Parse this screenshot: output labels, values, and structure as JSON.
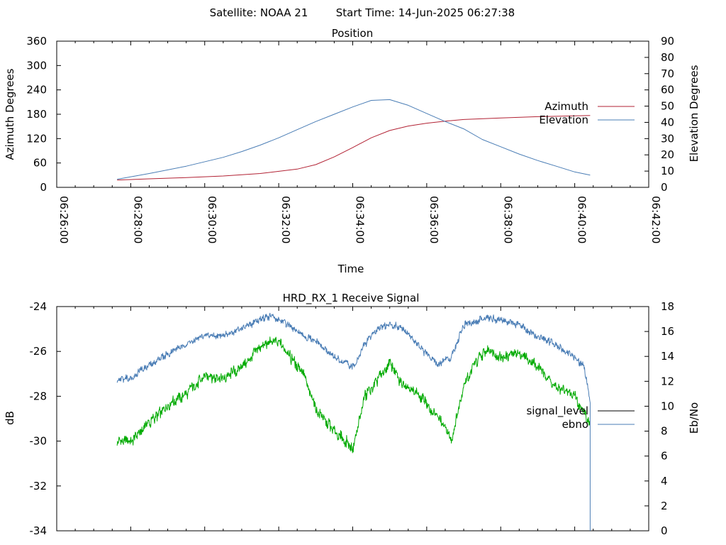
{
  "header": {
    "satellite_label": "Satellite: NOAA 21",
    "start_time_label": "Start Time: 14-Jun-2025 06:27:38"
  },
  "chart_data": [
    {
      "type": "line",
      "title": "Position",
      "xlabel": "Time",
      "ylabel": "Azimuth Degrees",
      "y2label": "Elevation Degrees",
      "x_ticks": [
        "06:26:00",
        "06:28:00",
        "06:30:00",
        "06:32:00",
        "06:34:00",
        "06:36:00",
        "06:38:00",
        "06:40:00",
        "06:42:00"
      ],
      "xlim": [
        "06:26:00",
        "06:42:00"
      ],
      "ylim": [
        0,
        360
      ],
      "y_ticks": [
        0,
        60,
        120,
        180,
        240,
        300,
        360
      ],
      "y2lim": [
        0,
        90
      ],
      "y2_ticks": [
        0,
        10,
        20,
        30,
        40,
        50,
        60,
        70,
        80,
        90
      ],
      "grid": false,
      "legend": "right",
      "series": [
        {
          "name": "Azimuth",
          "axis": "y",
          "color": "#b22234",
          "x": [
            "06:27:38",
            "06:28:30",
            "06:29:30",
            "06:30:30",
            "06:31:30",
            "06:32:30",
            "06:33:00",
            "06:33:30",
            "06:34:00",
            "06:34:30",
            "06:35:00",
            "06:35:30",
            "06:36:00",
            "06:36:30",
            "06:37:00",
            "06:38:00",
            "06:39:00",
            "06:40:00",
            "06:40:25"
          ],
          "values": [
            18,
            21,
            24,
            28,
            34,
            45,
            56,
            75,
            98,
            122,
            140,
            151,
            158,
            163,
            167,
            171,
            174,
            176,
            177
          ]
        },
        {
          "name": "Elevation",
          "axis": "y2",
          "color": "#4a7db5",
          "x": [
            "06:27:38",
            "06:28:30",
            "06:29:30",
            "06:30:30",
            "06:31:00",
            "06:31:30",
            "06:32:00",
            "06:32:30",
            "06:33:00",
            "06:33:30",
            "06:34:00",
            "06:34:30",
            "06:35:00",
            "06:35:30",
            "06:36:00",
            "06:36:30",
            "06:37:00",
            "06:37:30",
            "06:38:00",
            "06:38:30",
            "06:39:00",
            "06:39:30",
            "06:40:00",
            "06:40:25"
          ],
          "values": [
            5,
            8.5,
            13,
            18.5,
            22,
            26,
            30.5,
            35.5,
            40.5,
            45,
            49.5,
            53.5,
            54,
            50.5,
            45.5,
            40.5,
            36,
            29.5,
            25,
            20.5,
            16.5,
            13,
            9.5,
            7.5
          ]
        }
      ]
    },
    {
      "type": "line",
      "title": "HRD_RX_1 Receive Signal",
      "ylabel": "dB",
      "y2label": "Eb/No",
      "xlim": [
        "06:26:00",
        "06:42:00"
      ],
      "ylim": [
        -34,
        -24
      ],
      "y_ticks": [
        -34,
        -32,
        -30,
        -28,
        -26,
        -24
      ],
      "y2lim": [
        0,
        18
      ],
      "y2_ticks": [
        0,
        2,
        4,
        6,
        8,
        10,
        12,
        14,
        16,
        18
      ],
      "grid": false,
      "legend": "right",
      "series": [
        {
          "name": "signal_level",
          "axis": "y",
          "color": "#00aa00",
          "x": [
            "06:27:38",
            "06:28:00",
            "06:28:30",
            "06:29:00",
            "06:29:30",
            "06:30:00",
            "06:30:30",
            "06:31:00",
            "06:31:20",
            "06:31:40",
            "06:32:00",
            "06:32:20",
            "06:32:40",
            "06:33:00",
            "06:33:20",
            "06:33:40",
            "06:34:00",
            "06:34:20",
            "06:34:40",
            "06:35:00",
            "06:35:20",
            "06:35:40",
            "06:36:00",
            "06:36:20",
            "06:36:40",
            "06:37:00",
            "06:37:20",
            "06:37:40",
            "06:38:00",
            "06:38:30",
            "06:39:00",
            "06:39:30",
            "06:40:00",
            "06:40:15",
            "06:40:25"
          ],
          "values": [
            -30,
            -30,
            -29.2,
            -28.4,
            -27.9,
            -27.1,
            -27.2,
            -26.7,
            -26.1,
            -25.6,
            -25.6,
            -26.3,
            -27,
            -28.5,
            -29.2,
            -29.8,
            -30.3,
            -28,
            -27.3,
            -26.5,
            -27.5,
            -27.8,
            -28.3,
            -29,
            -30,
            -27.5,
            -26.5,
            -25.8,
            -26.3,
            -26,
            -26.7,
            -27.6,
            -28,
            -28.7,
            -29.4
          ]
        },
        {
          "name": "ebno",
          "axis": "y2",
          "color": "#4a7db5",
          "x": [
            "06:27:38",
            "06:28:00",
            "06:28:30",
            "06:29:00",
            "06:29:30",
            "06:30:00",
            "06:30:30",
            "06:31:00",
            "06:31:20",
            "06:31:40",
            "06:32:00",
            "06:32:20",
            "06:32:40",
            "06:33:00",
            "06:33:20",
            "06:33:40",
            "06:34:00",
            "06:34:20",
            "06:34:40",
            "06:35:00",
            "06:35:20",
            "06:35:40",
            "06:36:00",
            "06:36:20",
            "06:36:40",
            "06:37:00",
            "06:37:20",
            "06:37:40",
            "06:38:00",
            "06:38:30",
            "06:39:00",
            "06:39:30",
            "06:40:00",
            "06:40:15",
            "06:40:25"
          ],
          "values": [
            12,
            12.3,
            13.3,
            14.2,
            15,
            15.6,
            15.7,
            16.2,
            16.7,
            17.2,
            17,
            16.3,
            15.6,
            15.2,
            14.4,
            13.7,
            13.1,
            15,
            16.3,
            16.6,
            16.3,
            15.2,
            14.1,
            13.4,
            14,
            16.5,
            16.8,
            17.1,
            16.9,
            16.5,
            15.6,
            14.9,
            13.9,
            13.2,
            10.5
          ]
        }
      ]
    }
  ]
}
